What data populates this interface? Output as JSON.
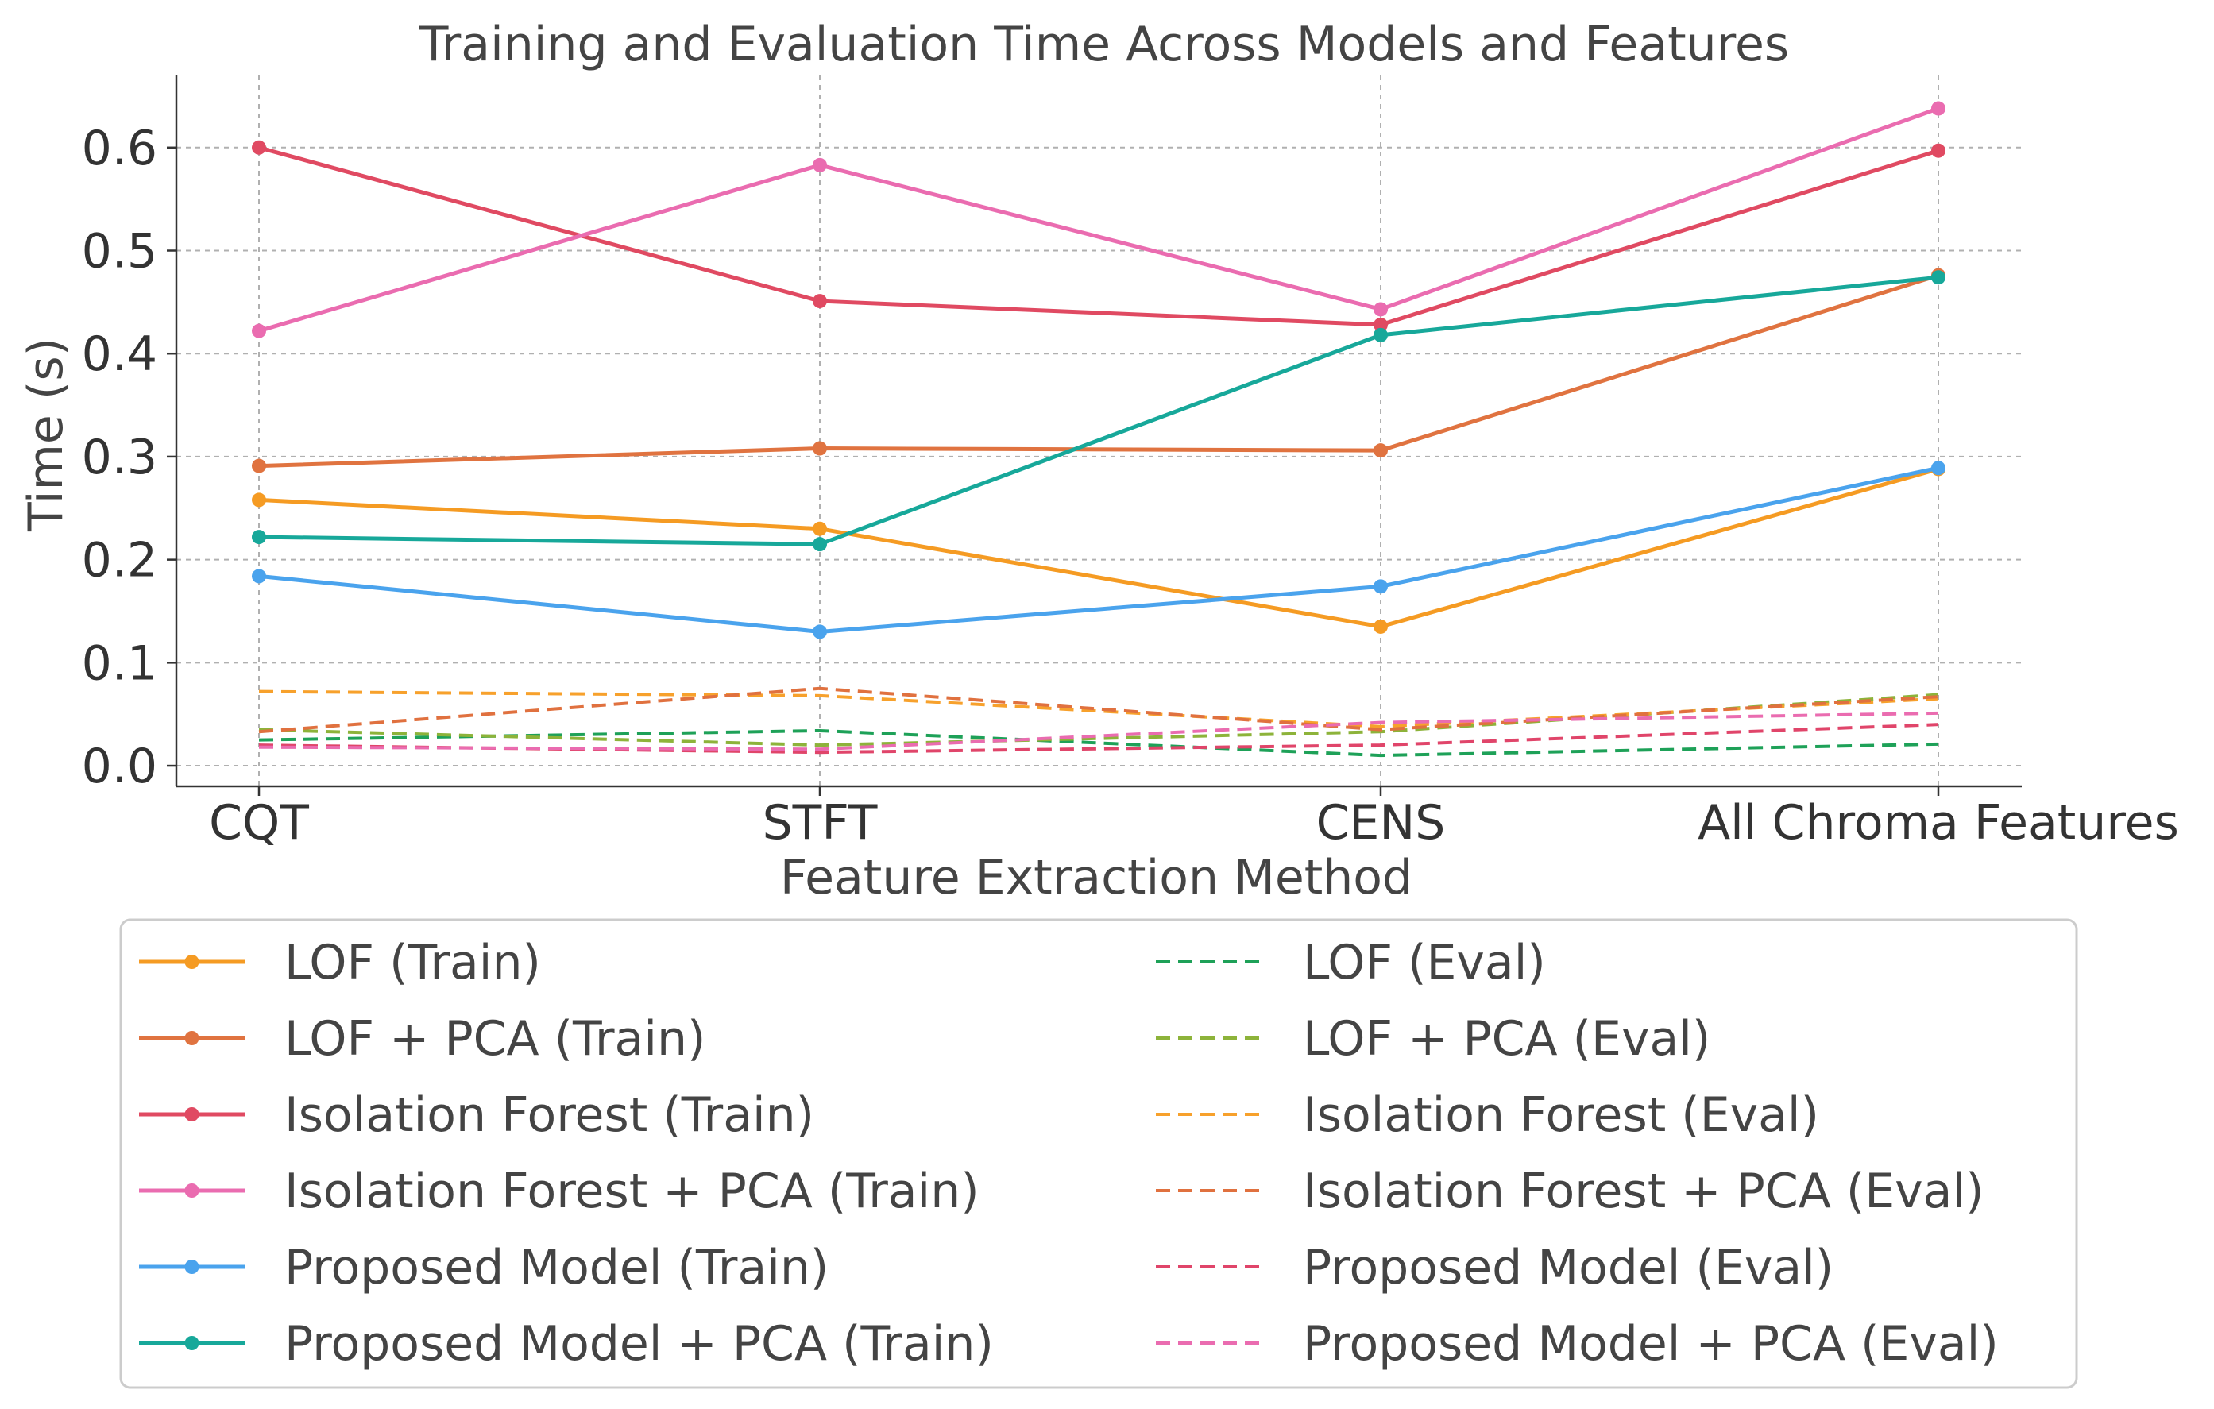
{
  "chart_data": {
    "type": "line",
    "title": "Training and Evaluation Time Across Models and Features",
    "xlabel": "Feature Extraction Method",
    "ylabel": "Time (s)",
    "categories": [
      "CQT",
      "STFT",
      "CENS",
      "All Chroma Features"
    ],
    "ylim": [
      -0.02,
      0.67
    ],
    "yticks": [
      0.0,
      0.1,
      0.2,
      0.3,
      0.4,
      0.5,
      0.6
    ],
    "ytick_labels": [
      "0.0",
      "0.1",
      "0.2",
      "0.3",
      "0.4",
      "0.5",
      "0.6"
    ],
    "grid": true,
    "legend_position": "bottom",
    "series": [
      {
        "name": "LOF (Train)",
        "style": "solid-marker",
        "color": "#f59b23",
        "values": [
          0.258,
          0.23,
          0.135,
          0.288
        ]
      },
      {
        "name": "LOF + PCA (Train)",
        "style": "solid-marker",
        "color": "#e07340",
        "values": [
          0.291,
          0.308,
          0.306,
          0.476
        ]
      },
      {
        "name": "Isolation Forest (Train)",
        "style": "solid-marker",
        "color": "#e04a62",
        "values": [
          0.6,
          0.451,
          0.428,
          0.597
        ]
      },
      {
        "name": "Isolation Forest + PCA (Train)",
        "style": "solid-marker",
        "color": "#ea6cb0",
        "values": [
          0.422,
          0.583,
          0.443,
          0.638
        ]
      },
      {
        "name": "Proposed Model (Train)",
        "style": "solid-marker",
        "color": "#4aa3ed",
        "values": [
          0.184,
          0.13,
          0.174,
          0.289
        ]
      },
      {
        "name": "Proposed Model + PCA (Train)",
        "style": "solid-marker",
        "color": "#17a89a",
        "values": [
          0.222,
          0.215,
          0.418,
          0.474
        ]
      },
      {
        "name": "LOF (Eval)",
        "style": "dashed",
        "color": "#1ea158",
        "values": [
          0.025,
          0.034,
          0.01,
          0.021
        ]
      },
      {
        "name": "LOF + PCA (Eval)",
        "style": "dashed",
        "color": "#8db33a",
        "values": [
          0.035,
          0.02,
          0.033,
          0.069
        ]
      },
      {
        "name": "Isolation Forest (Eval)",
        "style": "dashed",
        "color": "#f7a12c",
        "values": [
          0.072,
          0.068,
          0.038,
          0.065
        ]
      },
      {
        "name": "Isolation Forest + PCA (Eval)",
        "style": "dashed",
        "color": "#e0713f",
        "values": [
          0.033,
          0.075,
          0.035,
          0.067
        ]
      },
      {
        "name": "Proposed Model (Eval)",
        "style": "dashed",
        "color": "#e0456a",
        "values": [
          0.02,
          0.013,
          0.02,
          0.04
        ]
      },
      {
        "name": "Proposed Model + PCA (Eval)",
        "style": "dashed",
        "color": "#ea6cb0",
        "values": [
          0.018,
          0.016,
          0.042,
          0.051
        ]
      }
    ]
  }
}
